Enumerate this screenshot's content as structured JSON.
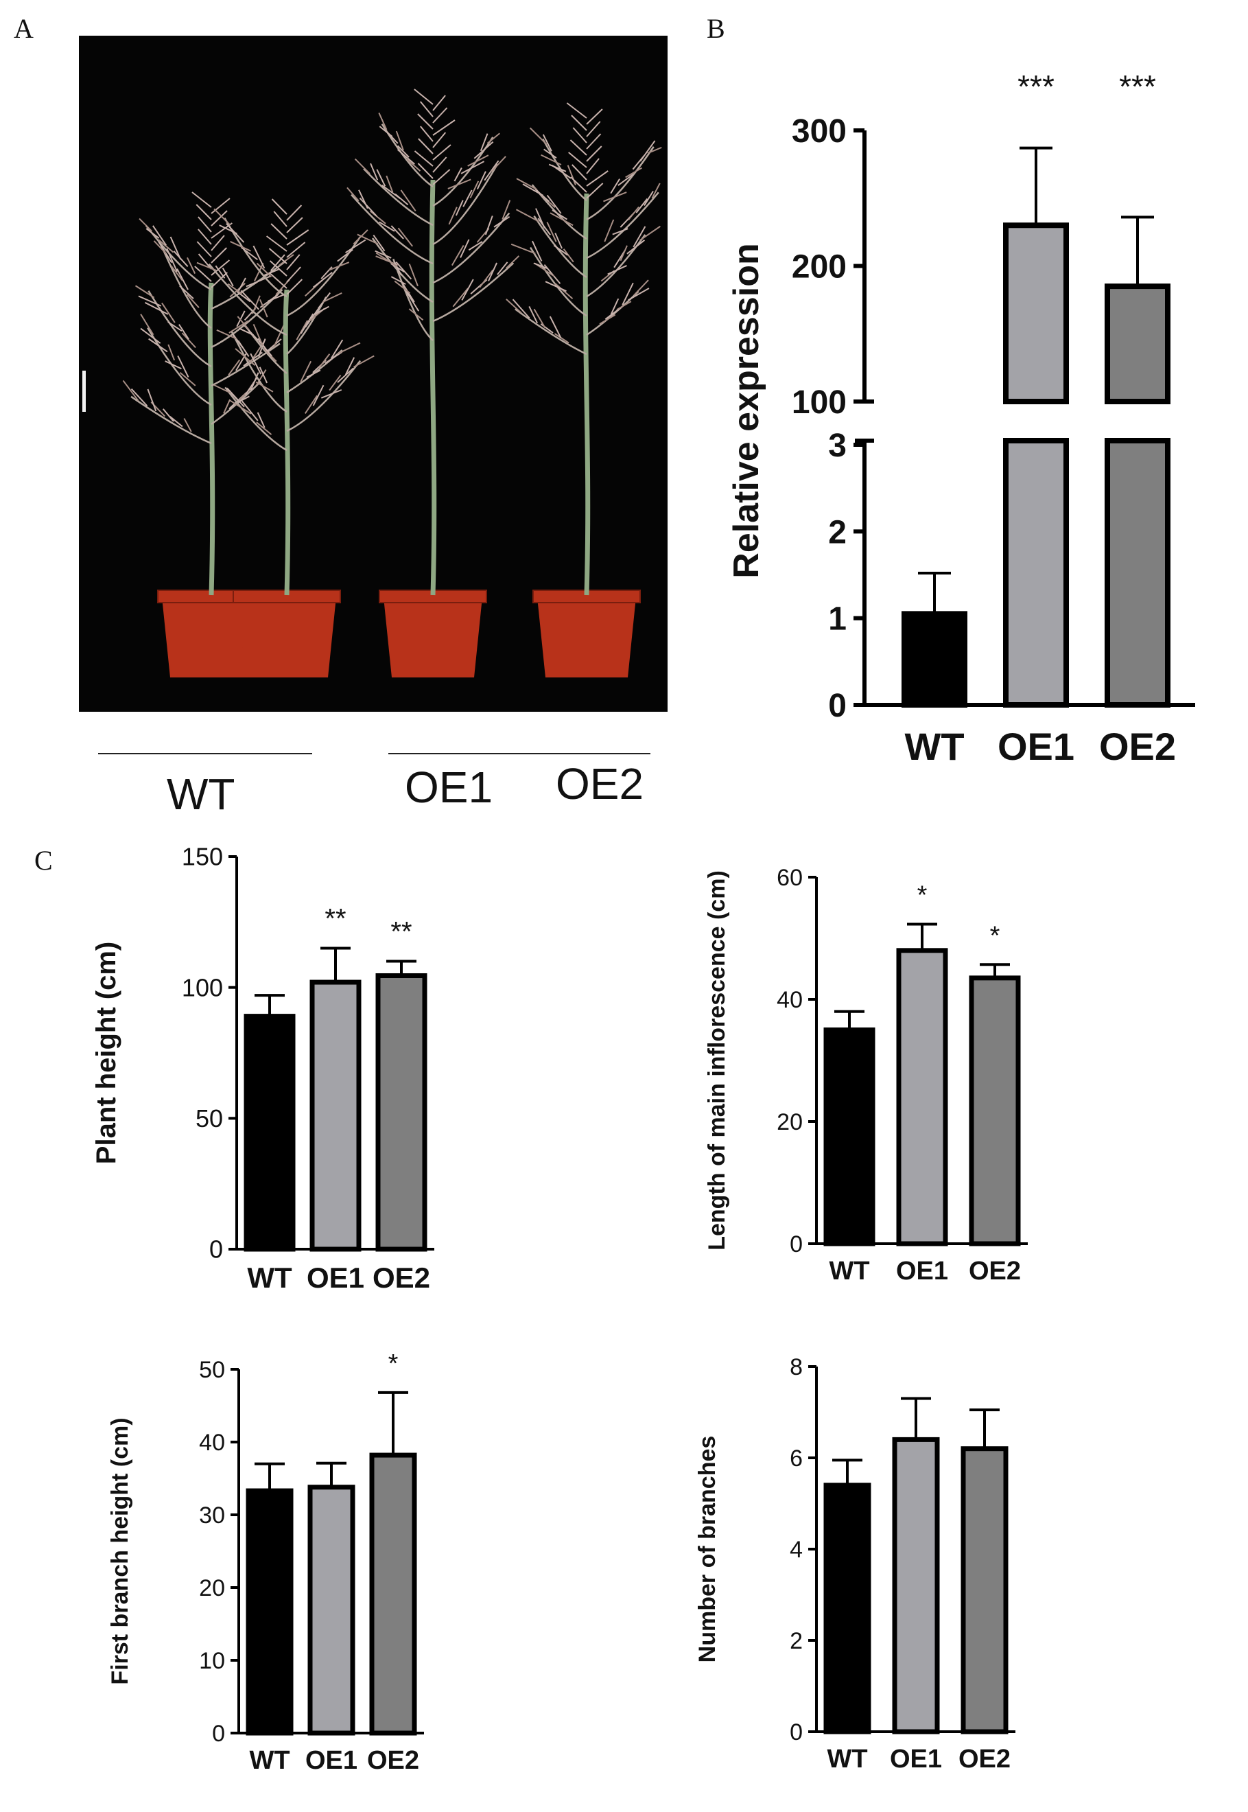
{
  "panels": {
    "a": "A",
    "b": "B",
    "c": "C"
  },
  "photo": {
    "group_wt": "WT",
    "group_oe1": "OE1",
    "group_oe2": "OE2",
    "pot_color": "#b8321a",
    "stem_color": "#8fa883"
  },
  "colors": {
    "WT": "#000000",
    "OE1": "#a3a3a8",
    "OE2": "#7f7f7f"
  },
  "chart_data": [
    {
      "id": "relative-expression",
      "type": "bar",
      "categories": [
        "WT",
        "OE1",
        "OE2"
      ],
      "values": [
        1.05,
        230,
        185
      ],
      "errors": [
        0.47,
        57,
        51
      ],
      "significance": [
        "",
        "***",
        "***"
      ],
      "ylabel": "Relative expression",
      "axis_break": true,
      "lower_ticks": [
        "0",
        "1",
        "2",
        "3"
      ],
      "upper_ticks": [
        "100",
        "200",
        "300"
      ]
    },
    {
      "id": "plant-height",
      "type": "bar",
      "categories": [
        "WT",
        "OE1",
        "OE2"
      ],
      "values": [
        89,
        102,
        104.5
      ],
      "errors": [
        8,
        13,
        5.5
      ],
      "significance": [
        "",
        "**",
        "**"
      ],
      "ylabel": "Plant height (cm)",
      "ylim": [
        0,
        150
      ],
      "ticks": [
        0,
        50,
        100,
        150
      ]
    },
    {
      "id": "main-inflorescence",
      "type": "bar",
      "categories": [
        "WT",
        "OE1",
        "OE2"
      ],
      "values": [
        35,
        48,
        43.5
      ],
      "errors": [
        3,
        4.3,
        2.2
      ],
      "significance": [
        "",
        "*",
        "*"
      ],
      "ylabel": "Length of main inflorescence (cm)",
      "ylim": [
        0,
        60
      ],
      "ticks": [
        0,
        20,
        40,
        60
      ]
    },
    {
      "id": "first-branch-height",
      "type": "bar",
      "categories": [
        "WT",
        "OE1",
        "OE2"
      ],
      "values": [
        33.3,
        33.8,
        38.2
      ],
      "errors": [
        3.7,
        3.3,
        8.6
      ],
      "significance": [
        "",
        "",
        "*"
      ],
      "ylabel": "First branch height (cm)",
      "ylim": [
        0,
        50
      ],
      "ticks": [
        0,
        10,
        20,
        30,
        40,
        50
      ]
    },
    {
      "id": "number-of-branches",
      "type": "bar",
      "categories": [
        "WT",
        "OE1",
        "OE2"
      ],
      "values": [
        5.4,
        6.4,
        6.2
      ],
      "errors": [
        0.55,
        0.9,
        0.85
      ],
      "significance": [
        "",
        "",
        ""
      ],
      "ylabel": "Number of branches",
      "ylim": [
        0,
        8
      ],
      "ticks": [
        0,
        2,
        4,
        6,
        8
      ]
    }
  ]
}
